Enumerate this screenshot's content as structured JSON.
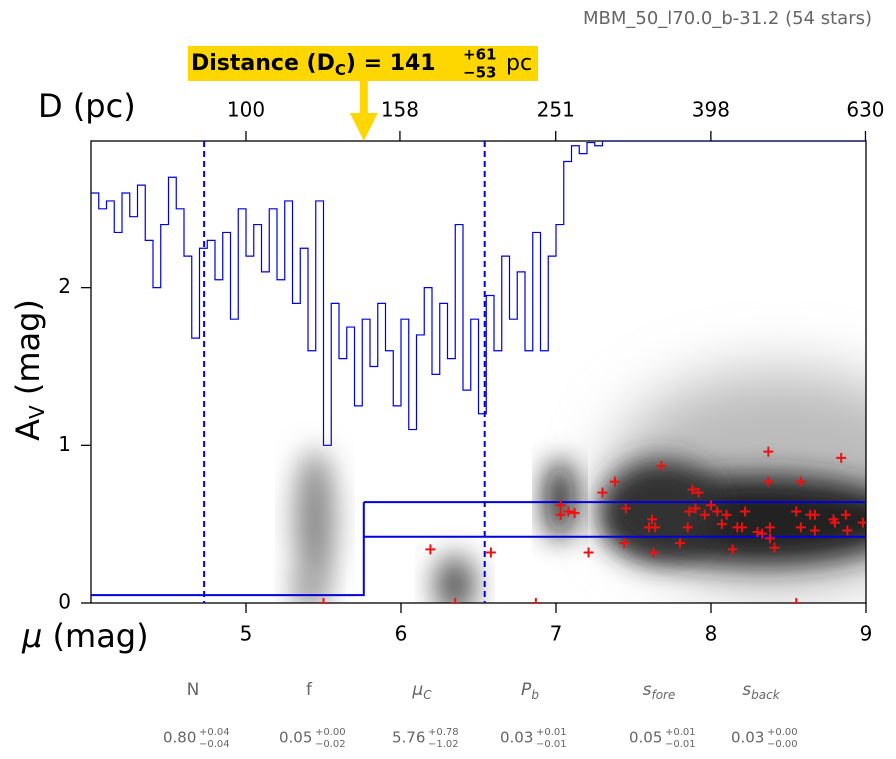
{
  "chart_data": {
    "type": "scatter",
    "title": "MBM_50_l70.0_b-31.2 (54 stars)",
    "xlabel": "μ",
    "xlabel_unit": " (mag)",
    "ylabel": "A",
    "ylabel_sub": "V",
    "ylabel_unit": " (mag)",
    "x2label": "D (pc)",
    "xlim": [
      4,
      9
    ],
    "xticks": [
      5,
      6,
      7,
      8,
      9
    ],
    "ylim": [
      0,
      2.93
    ],
    "yticks": [
      0,
      1,
      2
    ],
    "x2lim": [
      63.1,
      631
    ],
    "x2scale": "log",
    "x2ticks": [
      100,
      158,
      251,
      398,
      630
    ],
    "annotation": {
      "label": "Distance (D",
      "sub": "C",
      "eq": ") = ",
      "value": 141,
      "upper": "+61",
      "lower": "−53",
      "unit": "pc",
      "color": "#ffd700"
    },
    "model": {
      "color": "#0000dd",
      "break": 5.76,
      "low": 0.05,
      "upper": 0.64,
      "lower": 0.42
    },
    "bounds": [
      4.73,
      6.54
    ],
    "step": {
      "color": "#0000dd",
      "x": [
        4.0,
        4.05,
        4.1,
        4.15,
        4.2,
        4.25,
        4.3,
        4.35,
        4.4,
        4.45,
        4.5,
        4.55,
        4.6,
        4.65,
        4.7,
        4.75,
        4.8,
        4.85,
        4.9,
        4.95,
        5.0,
        5.05,
        5.1,
        5.15,
        5.2,
        5.25,
        5.3,
        5.35,
        5.4,
        5.45,
        5.5,
        5.55,
        5.6,
        5.65,
        5.7,
        5.75,
        5.8,
        5.85,
        5.9,
        5.95,
        6.0,
        6.05,
        6.1,
        6.15,
        6.2,
        6.25,
        6.3,
        6.35,
        6.4,
        6.45,
        6.5,
        6.55,
        6.6,
        6.65,
        6.7,
        6.75,
        6.8,
        6.85,
        6.9,
        6.95,
        7.0,
        7.05,
        7.1,
        7.15,
        7.2,
        7.25,
        7.3
      ],
      "values": [
        2.6,
        2.5,
        2.55,
        2.35,
        2.6,
        2.45,
        2.65,
        2.3,
        2.0,
        2.4,
        2.7,
        2.5,
        2.2,
        1.68,
        2.25,
        2.3,
        2.05,
        2.35,
        1.8,
        2.5,
        2.2,
        2.4,
        2.1,
        2.5,
        2.05,
        2.55,
        1.9,
        2.25,
        1.6,
        2.55,
        1.0,
        1.9,
        1.55,
        1.75,
        1.25,
        1.8,
        1.5,
        1.9,
        1.6,
        1.25,
        1.8,
        1.1,
        1.7,
        2.0,
        1.45,
        1.9,
        1.55,
        2.4,
        1.35,
        1.8,
        1.2,
        1.95,
        1.6,
        2.2,
        1.8,
        2.1,
        1.6,
        2.35,
        1.6,
        2.2,
        2.4,
        2.8,
        2.9,
        2.85,
        2.92,
        2.9,
        2.93
      ]
    },
    "points": {
      "color": "#ee1111",
      "x": [
        5.5,
        6.19,
        6.58,
        6.35,
        6.87,
        7.03,
        7.03,
        7.08,
        7.12,
        7.21,
        7.3,
        7.38,
        7.44,
        7.6,
        7.62,
        7.63,
        7.68,
        7.8,
        7.85,
        7.86,
        7.88,
        7.9,
        7.92,
        7.96,
        8.04,
        8.07,
        8.1,
        8.14,
        8.17,
        8.2,
        8.22,
        8.33,
        8.37,
        8.37,
        8.38,
        8.38,
        8.41,
        8.55,
        8.55,
        8.58,
        8.58,
        8.64,
        8.67,
        8.67,
        8.79,
        8.8,
        8.84,
        8.87,
        8.88,
        8.98,
        7.64,
        8.3,
        7.45,
        8.0
      ],
      "y": [
        0,
        0.34,
        0.32,
        0,
        0,
        0.62,
        0.56,
        0.58,
        0.57,
        0.32,
        0.7,
        0.77,
        0.38,
        0.48,
        0.53,
        0.32,
        0.87,
        0.38,
        0.48,
        0.58,
        0.72,
        0.6,
        0.7,
        0.56,
        0.58,
        0.5,
        0.56,
        0.34,
        0.48,
        0.48,
        0.58,
        0.44,
        0.96,
        0.77,
        0.48,
        0.41,
        0.35,
        0.58,
        0,
        0.77,
        0.48,
        0.56,
        0.56,
        0.46,
        0.53,
        0.51,
        0.92,
        0.56,
        0.46,
        0.51,
        0.48,
        0.45,
        0.6,
        0.62
      ]
    },
    "parameters": [
      {
        "name": "N",
        "value": "0.80",
        "plus": "+0.04",
        "minus": "−0.04"
      },
      {
        "name": "f",
        "value": "0.05",
        "plus": "+0.00",
        "minus": "−0.02"
      },
      {
        "name": "μ",
        "sub": "C",
        "value": "5.76",
        "plus": "+0.78",
        "minus": "−1.02"
      },
      {
        "name": "P",
        "sub": "b",
        "value": "0.03",
        "plus": "+0.01",
        "minus": "−0.01"
      },
      {
        "name": "s",
        "sub": "fore",
        "value": "0.05",
        "plus": "+0.01",
        "minus": "−0.01"
      },
      {
        "name": "s",
        "sub": "back",
        "value": "0.03",
        "plus": "+0.00",
        "minus": "−0.00"
      }
    ]
  }
}
